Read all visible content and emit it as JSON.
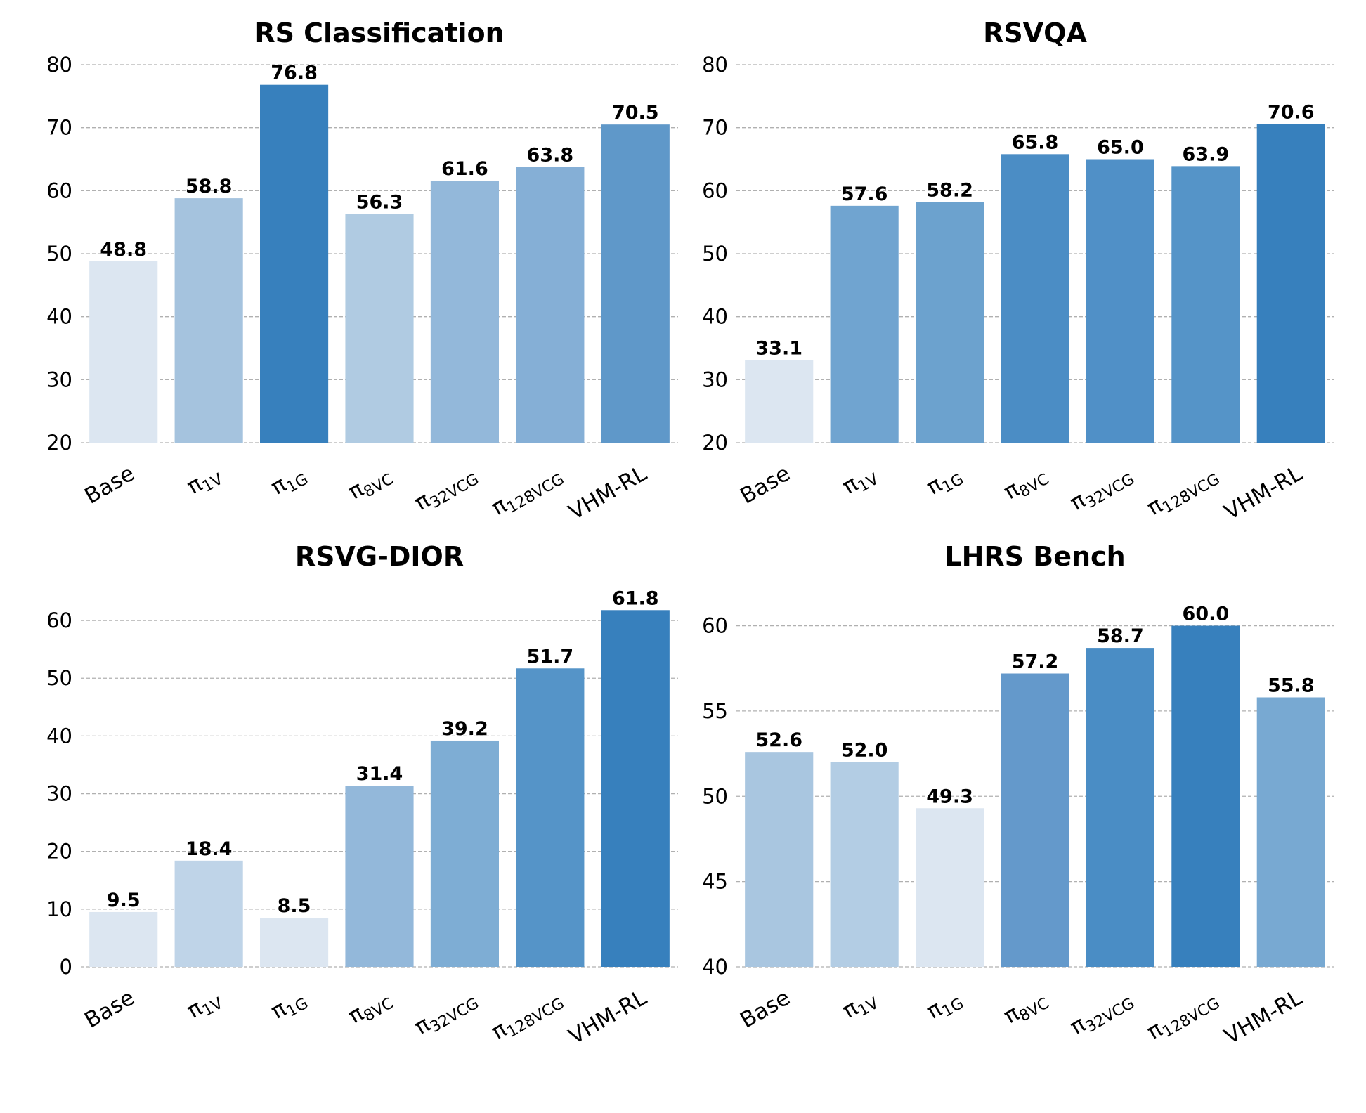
{
  "chart_data": [
    {
      "type": "bar",
      "title": "RS Classification",
      "categories": [
        "Base",
        "π1V",
        "π1G",
        "π8VC",
        "π32VCG",
        "π128VCG",
        "VHM-RL"
      ],
      "category_parts": [
        {
          "main": "Base",
          "sub": ""
        },
        {
          "main": "π",
          "sub": "1V"
        },
        {
          "main": "π",
          "sub": "1G"
        },
        {
          "main": "π",
          "sub": "8VC"
        },
        {
          "main": "π",
          "sub": "32VCG"
        },
        {
          "main": "π",
          "sub": "128VCG"
        },
        {
          "main": "VHM-RL",
          "sub": ""
        }
      ],
      "values": [
        48.8,
        58.8,
        76.8,
        56.3,
        61.6,
        63.8,
        70.5
      ],
      "value_labels": [
        "48.8",
        "58.8",
        "76.8",
        "56.3",
        "61.6",
        "63.8",
        "70.5"
      ],
      "ylim": [
        20,
        80
      ],
      "yticks": [
        20,
        30,
        40,
        50,
        60,
        70,
        80
      ],
      "ytick_labels": [
        "20",
        "30",
        "40",
        "50",
        "60",
        "70",
        "80"
      ],
      "xlabel": "",
      "ylabel": "",
      "grid": true,
      "bar_colors": [
        "#dce6f1",
        "#a5c3de",
        "#3780bd",
        "#b0cbe2",
        "#93b8da",
        "#85afd6",
        "#5f98c9"
      ]
    },
    {
      "type": "bar",
      "title": "RSVQA",
      "categories": [
        "Base",
        "π1V",
        "π1G",
        "π8VC",
        "π32VCG",
        "π128VCG",
        "VHM-RL"
      ],
      "category_parts": [
        {
          "main": "Base",
          "sub": ""
        },
        {
          "main": "π",
          "sub": "1V"
        },
        {
          "main": "π",
          "sub": "1G"
        },
        {
          "main": "π",
          "sub": "8VC"
        },
        {
          "main": "π",
          "sub": "32VCG"
        },
        {
          "main": "π",
          "sub": "128VCG"
        },
        {
          "main": "VHM-RL",
          "sub": ""
        }
      ],
      "values": [
        33.1,
        57.6,
        58.2,
        65.8,
        65.0,
        63.9,
        70.6
      ],
      "value_labels": [
        "33.1",
        "57.6",
        "58.2",
        "65.8",
        "65.0",
        "63.9",
        "70.6"
      ],
      "ylim": [
        20,
        80
      ],
      "yticks": [
        20,
        30,
        40,
        50,
        60,
        70,
        80
      ],
      "ytick_labels": [
        "20",
        "30",
        "40",
        "50",
        "60",
        "70",
        "80"
      ],
      "xlabel": "",
      "ylabel": "",
      "grid": true,
      "bar_colors": [
        "#dce6f1",
        "#70a4d0",
        "#6ca2ce",
        "#4b8dc5",
        "#5090c7",
        "#5594c8",
        "#3780bd"
      ]
    },
    {
      "type": "bar",
      "title": "RSVG-DIOR",
      "categories": [
        "Base",
        "π1V",
        "π1G",
        "π8VC",
        "π32VCG",
        "π128VCG",
        "VHM-RL"
      ],
      "category_parts": [
        {
          "main": "Base",
          "sub": ""
        },
        {
          "main": "π",
          "sub": "1V"
        },
        {
          "main": "π",
          "sub": "1G"
        },
        {
          "main": "π",
          "sub": "8VC"
        },
        {
          "main": "π",
          "sub": "32VCG"
        },
        {
          "main": "π",
          "sub": "128VCG"
        },
        {
          "main": "VHM-RL",
          "sub": ""
        }
      ],
      "values": [
        9.5,
        18.4,
        8.5,
        31.4,
        39.2,
        51.7,
        61.8
      ],
      "value_labels": [
        "9.5",
        "18.4",
        "8.5",
        "31.4",
        "39.2",
        "51.7",
        "61.8"
      ],
      "ylim": [
        0,
        65
      ],
      "yticks": [
        0,
        10,
        20,
        30,
        40,
        50,
        60
      ],
      "ytick_labels": [
        "0",
        "10",
        "20",
        "30",
        "40",
        "50",
        "60"
      ],
      "xlabel": "",
      "ylabel": "",
      "grid": true,
      "bar_colors": [
        "#dce6f1",
        "#bfd4e8",
        "#dce6f1",
        "#93b8da",
        "#7eadd4",
        "#5594c8",
        "#3780bd"
      ]
    },
    {
      "type": "bar",
      "title": "LHRS Bench",
      "categories": [
        "Base",
        "π1V",
        "π1G",
        "π8VC",
        "π32VCG",
        "π128VCG",
        "VHM-RL"
      ],
      "category_parts": [
        {
          "main": "Base",
          "sub": ""
        },
        {
          "main": "π",
          "sub": "1V"
        },
        {
          "main": "π",
          "sub": "1G"
        },
        {
          "main": "π",
          "sub": "8VC"
        },
        {
          "main": "π",
          "sub": "32VCG"
        },
        {
          "main": "π",
          "sub": "128VCG"
        },
        {
          "main": "VHM-RL",
          "sub": ""
        }
      ],
      "values": [
        52.6,
        52.0,
        49.3,
        57.2,
        58.7,
        60.0,
        55.8
      ],
      "value_labels": [
        "52.6",
        "52.0",
        "49.3",
        "57.2",
        "58.7",
        "60.0",
        "55.8"
      ],
      "ylim": [
        40,
        62
      ],
      "yticks": [
        40,
        45,
        50,
        55,
        60
      ],
      "ytick_labels": [
        "40",
        "45",
        "50",
        "55",
        "60"
      ],
      "xlabel": "",
      "ylabel": "",
      "grid": true,
      "bar_colors": [
        "#a9c6e0",
        "#b3cde4",
        "#dce6f1",
        "#6499cb",
        "#4a8dc5",
        "#3780bd",
        "#78a9d2"
      ]
    }
  ]
}
